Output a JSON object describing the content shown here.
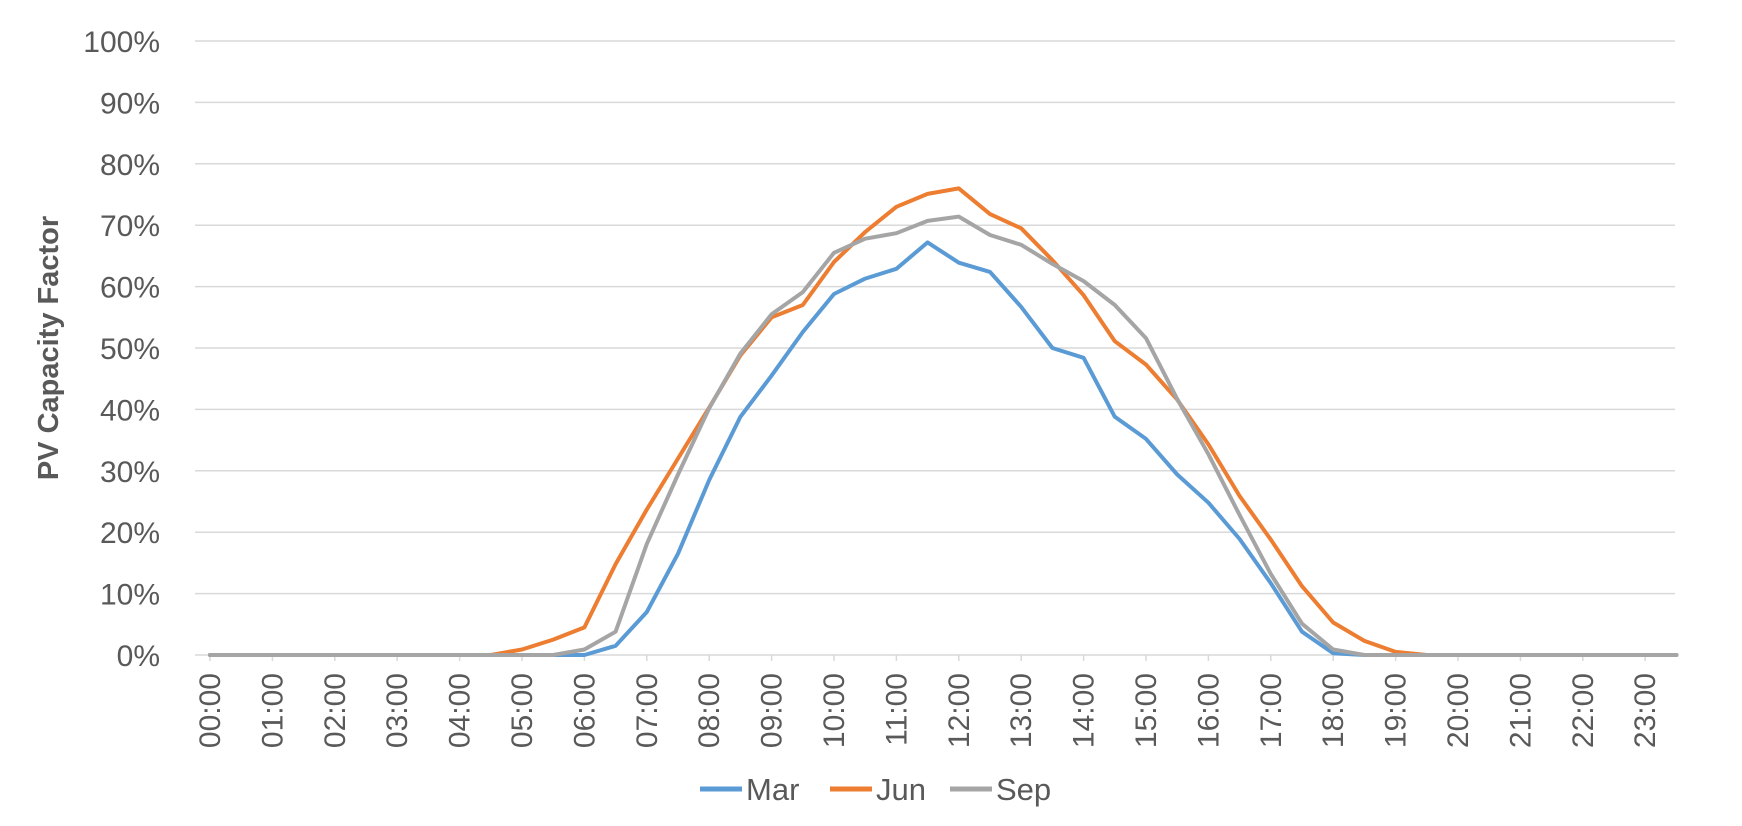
{
  "chart_data": {
    "type": "line",
    "title": "",
    "xlabel": "",
    "ylabel": "PV Capacity Factor",
    "ylim": [
      0,
      100
    ],
    "y_unit": "%",
    "y_ticks": [
      "0%",
      "10%",
      "20%",
      "30%",
      "40%",
      "50%",
      "60%",
      "70%",
      "80%",
      "90%",
      "100%"
    ],
    "y_tick_values": [
      0,
      10,
      20,
      30,
      40,
      50,
      60,
      70,
      80,
      90,
      100
    ],
    "x_ticks": [
      "00:00",
      "01:00",
      "02:00",
      "03:00",
      "04:00",
      "05:00",
      "06:00",
      "07:00",
      "08:00",
      "09:00",
      "10:00",
      "11:00",
      "12:00",
      "13:00",
      "14:00",
      "15:00",
      "16:00",
      "17:00",
      "18:00",
      "19:00",
      "20:00",
      "21:00",
      "22:00",
      "23:00"
    ],
    "x": [
      "00:00",
      "00:30",
      "01:00",
      "01:30",
      "02:00",
      "02:30",
      "03:00",
      "03:30",
      "04:00",
      "04:30",
      "05:00",
      "05:30",
      "06:00",
      "06:30",
      "07:00",
      "07:30",
      "08:00",
      "08:30",
      "09:00",
      "09:30",
      "10:00",
      "10:30",
      "11:00",
      "11:30",
      "12:00",
      "12:30",
      "13:00",
      "13:30",
      "14:00",
      "14:30",
      "15:00",
      "15:30",
      "16:00",
      "16:30",
      "17:00",
      "17:30",
      "18:00",
      "18:30",
      "19:00",
      "19:30",
      "20:00",
      "20:30",
      "21:00",
      "21:30",
      "22:00",
      "22:30",
      "23:00",
      "23:30"
    ],
    "grid": true,
    "legend_position": "bottom",
    "series": [
      {
        "name": "Mar",
        "color": "#5b9bd5",
        "values": [
          0,
          0,
          0,
          0,
          0,
          0,
          0,
          0,
          0,
          0,
          0,
          0,
          0,
          1.5,
          7,
          16.5,
          28.5,
          38.8,
          45.5,
          52.6,
          58.8,
          61.3,
          62.9,
          67.2,
          63.9,
          62.4,
          56.7,
          50,
          48.4,
          38.8,
          35.2,
          29.4,
          24.8,
          18.9,
          11.7,
          3.8,
          0.3,
          0,
          0,
          0,
          0,
          0,
          0,
          0,
          0,
          0,
          0,
          0
        ]
      },
      {
        "name": "Jun",
        "color": "#ed7d31",
        "values": [
          0,
          0,
          0,
          0,
          0,
          0,
          0,
          0,
          0,
          0,
          0.9,
          2.5,
          4.5,
          14.8,
          23.7,
          32,
          40.3,
          48.8,
          55,
          57,
          64,
          68.9,
          73,
          75.1,
          76,
          71.8,
          69.5,
          64.3,
          58.6,
          51.1,
          47.3,
          41.6,
          34.3,
          25.9,
          18.8,
          11.2,
          5.3,
          2.3,
          0.5,
          0,
          0,
          0,
          0,
          0,
          0,
          0,
          0,
          0
        ]
      },
      {
        "name": "Sep",
        "color": "#a5a5a5",
        "values": [
          0,
          0,
          0,
          0,
          0,
          0,
          0,
          0,
          0,
          0,
          0,
          0,
          0.9,
          3.8,
          18.1,
          29.4,
          40.2,
          49.1,
          55.5,
          59.1,
          65.5,
          67.8,
          68.7,
          70.7,
          71.4,
          68.4,
          66.8,
          63.7,
          60.9,
          57,
          51.6,
          41.7,
          32.7,
          22.8,
          13.2,
          5.1,
          0.9,
          0,
          0,
          0,
          0,
          0,
          0,
          0,
          0,
          0,
          0,
          0
        ]
      }
    ]
  }
}
